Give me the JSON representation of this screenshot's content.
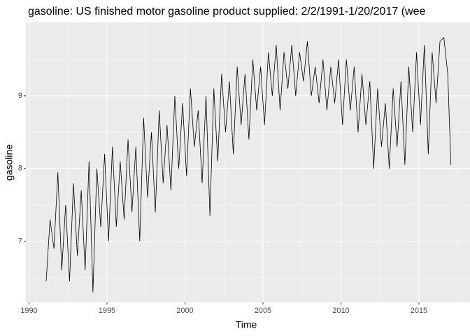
{
  "chart_data": {
    "type": "line",
    "title": "gasoline: US finished motor gasoline product supplied: 2/2/1991-1/20/2017 (wee",
    "x_label": "Time",
    "y_label": "gasoline",
    "xlim": [
      1989.8,
      2018.5
    ],
    "ylim": [
      6.16,
      10.01
    ],
    "xticks": [
      1990,
      1995,
      2000,
      2005,
      2010,
      2015
    ],
    "yticks": [
      7,
      8,
      9
    ],
    "grid": true,
    "x": [
      1991.1,
      1991.35,
      1991.6,
      1991.85,
      1992.1,
      1992.35,
      1992.6,
      1992.85,
      1993.1,
      1993.35,
      1993.6,
      1993.85,
      1994.1,
      1994.35,
      1994.6,
      1994.85,
      1995.1,
      1995.35,
      1995.6,
      1995.85,
      1996.1,
      1996.35,
      1996.6,
      1996.85,
      1997.1,
      1997.35,
      1997.6,
      1997.85,
      1998.1,
      1998.35,
      1998.6,
      1998.85,
      1999.1,
      1999.35,
      1999.6,
      1999.85,
      2000.1,
      2000.35,
      2000.6,
      2000.85,
      2001.1,
      2001.35,
      2001.6,
      2001.85,
      2002.1,
      2002.35,
      2002.6,
      2002.85,
      2003.1,
      2003.35,
      2003.6,
      2003.85,
      2004.1,
      2004.35,
      2004.6,
      2004.85,
      2005.1,
      2005.35,
      2005.6,
      2005.85,
      2006.1,
      2006.35,
      2006.6,
      2006.85,
      2007.1,
      2007.35,
      2007.6,
      2007.85,
      2008.1,
      2008.35,
      2008.6,
      2008.85,
      2009.1,
      2009.35,
      2009.6,
      2009.85,
      2010.1,
      2010.35,
      2010.6,
      2010.85,
      2011.1,
      2011.35,
      2011.6,
      2011.85,
      2012.1,
      2012.35,
      2012.6,
      2012.85,
      2013.1,
      2013.35,
      2013.6,
      2013.85,
      2014.1,
      2014.35,
      2014.6,
      2014.85,
      2015.1,
      2015.35,
      2015.6,
      2015.85,
      2016.1,
      2016.35,
      2016.6,
      2016.85,
      2017.05
    ],
    "series": [
      {
        "color": "#000000",
        "values": [
          6.45,
          7.3,
          6.9,
          7.95,
          6.6,
          7.5,
          6.45,
          7.8,
          6.8,
          7.7,
          6.6,
          8.1,
          6.3,
          8.0,
          7.2,
          8.2,
          7.0,
          8.3,
          7.2,
          8.1,
          7.3,
          8.4,
          7.4,
          8.3,
          7.0,
          8.7,
          7.6,
          8.5,
          7.4,
          8.8,
          7.8,
          8.6,
          7.7,
          9.0,
          8.0,
          8.9,
          7.9,
          9.1,
          8.3,
          8.8,
          7.8,
          9.0,
          7.35,
          9.1,
          8.1,
          9.3,
          8.5,
          9.2,
          8.2,
          9.4,
          8.6,
          9.3,
          8.4,
          9.5,
          8.8,
          9.4,
          8.6,
          9.6,
          9.0,
          9.7,
          8.8,
          9.6,
          9.1,
          9.7,
          9.0,
          9.6,
          9.2,
          9.75,
          9.0,
          9.4,
          8.9,
          9.5,
          8.8,
          9.4,
          8.9,
          9.5,
          8.6,
          9.5,
          8.8,
          9.4,
          8.5,
          9.3,
          8.6,
          9.2,
          8.0,
          9.1,
          8.3,
          8.9,
          8.0,
          9.1,
          8.3,
          9.2,
          8.05,
          9.4,
          8.5,
          9.6,
          8.6,
          9.7,
          8.2,
          9.6,
          8.9,
          9.75,
          9.8,
          9.3,
          8.05
        ]
      }
    ]
  }
}
